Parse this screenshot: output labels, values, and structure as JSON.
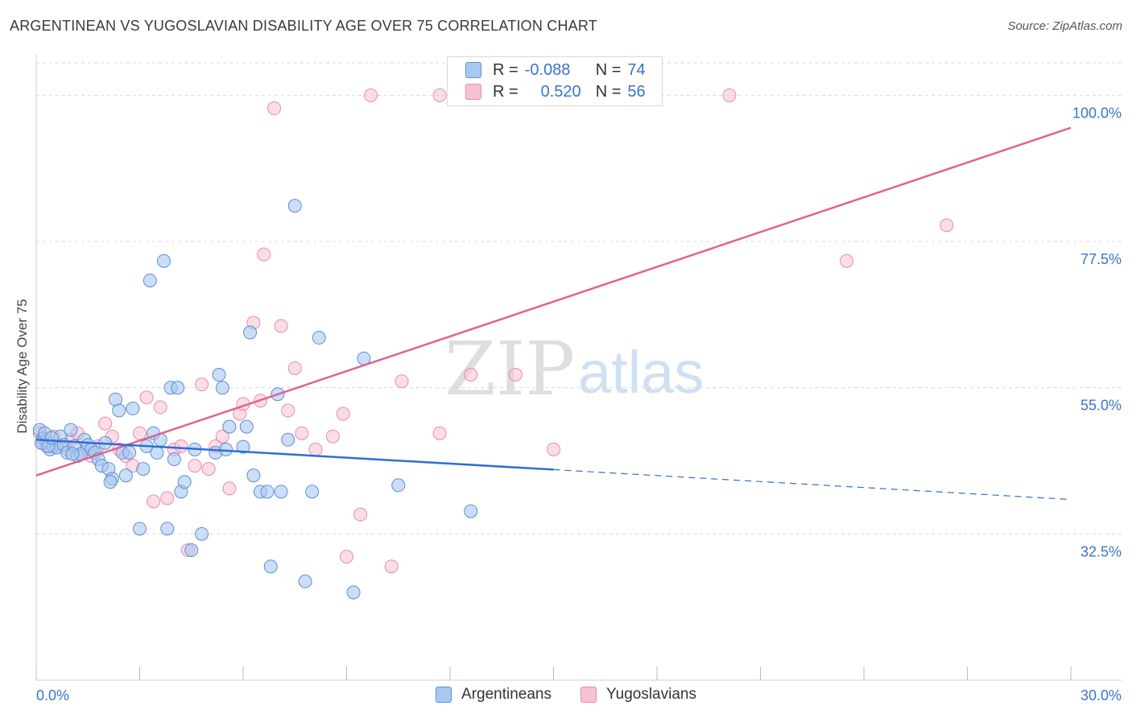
{
  "title": "ARGENTINEAN VS YUGOSLAVIAN DISABILITY AGE OVER 75 CORRELATION CHART",
  "source": "Source: ZipAtlas.com",
  "watermark": {
    "zip": "ZIP",
    "atlas": "atlas"
  },
  "colors": {
    "blue_fill": "#a9c8f0",
    "blue_stroke": "#5a8fd8",
    "blue_line": "#2d6fd1",
    "pink_fill": "#f7c1d3",
    "pink_stroke": "#e98aa9",
    "pink_line": "#e0628f",
    "axis_text": "#3a74c9",
    "grid": "#d9d9d9"
  },
  "legend": {
    "rows": [
      {
        "r_label": "R =",
        "r_value": "-0.088",
        "n_label": "N =",
        "n_value": "74"
      },
      {
        "r_label": "R =",
        "r_value": "0.520",
        "n_label": "N =",
        "n_value": "56"
      }
    ]
  },
  "bottom_legend": {
    "series1": "Argentineans",
    "series2": "Yugoslavians"
  },
  "chart_data": {
    "type": "scatter",
    "title": "ARGENTINEAN VS YUGOSLAVIAN DISABILITY AGE OVER 75 CORRELATION CHART",
    "xlabel": "",
    "ylabel": "Disability Age Over 75",
    "xlim": [
      0,
      30
    ],
    "ylim": [
      10,
      105
    ],
    "x_tick_labels": [
      "0.0%",
      "30.0%"
    ],
    "y_ticks": [
      32.5,
      55.0,
      77.5,
      100.0
    ],
    "y_tick_labels": [
      "32.5%",
      "55.0%",
      "77.5%",
      "100.0%"
    ],
    "grid": true,
    "series": [
      {
        "name": "Argentineans",
        "r": -0.088,
        "n": 74,
        "trend": {
          "x0": 0,
          "y0": 47.0,
          "x1": 15,
          "y1": 42.4,
          "dash_to_x": 30,
          "dash_to_y": 37.8
        },
        "points": [
          [
            0.1,
            48.5
          ],
          [
            0.2,
            47.2
          ],
          [
            0.3,
            46.8
          ],
          [
            0.4,
            45.5
          ],
          [
            0.5,
            46.0
          ],
          [
            0.6,
            45.8
          ],
          [
            0.7,
            47.5
          ],
          [
            0.8,
            46.2
          ],
          [
            0.9,
            45.0
          ],
          [
            1.0,
            48.5
          ],
          [
            1.1,
            46.0
          ],
          [
            1.2,
            44.5
          ],
          [
            1.3,
            44.8
          ],
          [
            1.4,
            47.0
          ],
          [
            1.5,
            46.2
          ],
          [
            1.6,
            45.5
          ],
          [
            1.7,
            45.0
          ],
          [
            1.8,
            44.0
          ],
          [
            1.9,
            43.0
          ],
          [
            2.0,
            46.5
          ],
          [
            2.1,
            42.5
          ],
          [
            2.2,
            41.0
          ],
          [
            2.3,
            53.2
          ],
          [
            2.4,
            51.5
          ],
          [
            2.5,
            45.0
          ],
          [
            2.6,
            41.5
          ],
          [
            2.7,
            45.0
          ],
          [
            2.8,
            51.8
          ],
          [
            3.0,
            33.3
          ],
          [
            3.1,
            42.5
          ],
          [
            3.2,
            46.0
          ],
          [
            3.3,
            71.5
          ],
          [
            3.4,
            48.0
          ],
          [
            3.5,
            45.0
          ],
          [
            3.6,
            47.0
          ],
          [
            3.7,
            74.5
          ],
          [
            3.8,
            33.3
          ],
          [
            3.9,
            55.0
          ],
          [
            4.0,
            44.0
          ],
          [
            4.1,
            55.0
          ],
          [
            4.2,
            39.0
          ],
          [
            4.3,
            40.5
          ],
          [
            4.5,
            30.0
          ],
          [
            4.6,
            45.5
          ],
          [
            4.8,
            32.5
          ],
          [
            5.2,
            45.0
          ],
          [
            5.3,
            57.0
          ],
          [
            5.4,
            55.0
          ],
          [
            5.5,
            45.5
          ],
          [
            5.6,
            49.0
          ],
          [
            6.0,
            45.9
          ],
          [
            6.1,
            49.0
          ],
          [
            6.3,
            41.5
          ],
          [
            6.5,
            39.0
          ],
          [
            6.7,
            39.0
          ],
          [
            6.8,
            27.5
          ],
          [
            7.0,
            54.0
          ],
          [
            7.3,
            47.0
          ],
          [
            7.5,
            83.0
          ],
          [
            7.8,
            25.2
          ],
          [
            8.0,
            39.0
          ],
          [
            8.2,
            62.7
          ],
          [
            9.2,
            23.5
          ],
          [
            9.5,
            59.5
          ],
          [
            0.15,
            46.5
          ],
          [
            0.25,
            48.0
          ],
          [
            0.35,
            46.0
          ],
          [
            0.45,
            47.3
          ],
          [
            1.05,
            44.8
          ],
          [
            2.15,
            40.5
          ],
          [
            6.2,
            63.5
          ],
          [
            7.1,
            39.0
          ],
          [
            10.5,
            40.0
          ],
          [
            12.6,
            36.0
          ]
        ]
      },
      {
        "name": "Yugoslavians",
        "r": 0.52,
        "n": 56,
        "trend": {
          "x0": 0,
          "y0": 41.5,
          "x1": 30,
          "y1": 95.0
        },
        "points": [
          [
            0.1,
            48.0
          ],
          [
            0.2,
            46.5
          ],
          [
            0.3,
            46.0
          ],
          [
            0.5,
            47.5
          ],
          [
            0.7,
            46.0
          ],
          [
            0.9,
            45.5
          ],
          [
            1.0,
            47.0
          ],
          [
            1.2,
            48.0
          ],
          [
            1.4,
            45.0
          ],
          [
            1.6,
            44.5
          ],
          [
            1.8,
            46.0
          ],
          [
            2.0,
            49.5
          ],
          [
            2.2,
            47.5
          ],
          [
            2.4,
            45.5
          ],
          [
            2.6,
            44.5
          ],
          [
            2.8,
            43.0
          ],
          [
            3.0,
            48.0
          ],
          [
            3.2,
            53.5
          ],
          [
            3.4,
            37.5
          ],
          [
            3.6,
            52.0
          ],
          [
            3.8,
            38.0
          ],
          [
            4.0,
            45.5
          ],
          [
            4.2,
            46.0
          ],
          [
            4.4,
            30.0
          ],
          [
            4.6,
            43.0
          ],
          [
            4.8,
            55.5
          ],
          [
            5.0,
            42.5
          ],
          [
            5.2,
            46.0
          ],
          [
            5.4,
            47.5
          ],
          [
            5.6,
            39.5
          ],
          [
            5.9,
            51.0
          ],
          [
            6.0,
            52.5
          ],
          [
            6.3,
            65.0
          ],
          [
            6.5,
            53.0
          ],
          [
            6.6,
            75.5
          ],
          [
            6.9,
            98.0
          ],
          [
            7.1,
            64.5
          ],
          [
            7.3,
            51.5
          ],
          [
            7.5,
            58.0
          ],
          [
            7.7,
            48.0
          ],
          [
            8.1,
            45.5
          ],
          [
            8.6,
            47.5
          ],
          [
            8.9,
            51.0
          ],
          [
            9.0,
            29.0
          ],
          [
            9.4,
            35.5
          ],
          [
            9.7,
            100.0
          ],
          [
            10.3,
            27.5
          ],
          [
            10.6,
            56.0
          ],
          [
            11.7,
            100.0
          ],
          [
            11.7,
            48.0
          ],
          [
            12.6,
            57.0
          ],
          [
            13.9,
            57.0
          ],
          [
            15.0,
            45.5
          ],
          [
            20.1,
            100.0
          ],
          [
            23.5,
            74.5
          ],
          [
            26.4,
            80.0
          ]
        ]
      }
    ]
  }
}
